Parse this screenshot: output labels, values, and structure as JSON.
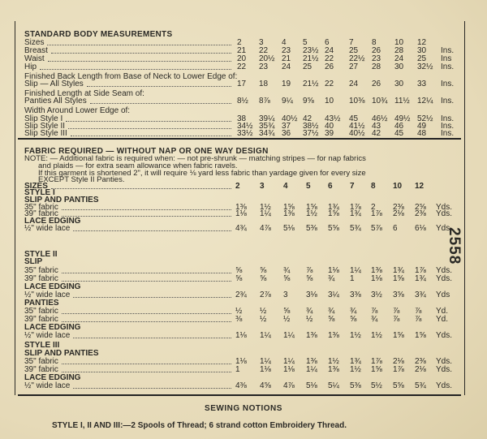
{
  "pattern_number": "2558",
  "body_measurements": {
    "title": "STANDARD BODY MEASUREMENTS",
    "rows": [
      {
        "label": "Sizes",
        "values": [
          "2",
          "3",
          "4",
          "5",
          "6",
          "7",
          "8",
          "10",
          "12"
        ],
        "unit": ""
      },
      {
        "label": "Breast",
        "values": [
          "21",
          "22",
          "23",
          "23½",
          "24",
          "25",
          "26",
          "28",
          "30"
        ],
        "unit": "Ins."
      },
      {
        "label": "Waist",
        "values": [
          "20",
          "20½",
          "21",
          "21½",
          "22",
          "22½",
          "23",
          "24",
          "25"
        ],
        "unit": "Ins"
      },
      {
        "label": "Hip",
        "values": [
          "22",
          "23",
          "24",
          "25",
          "26",
          "27",
          "28",
          "30",
          "32½"
        ],
        "unit": "Ins."
      },
      {
        "label": "Finished Back Length from Base of Neck to Lower Edge of:",
        "plain": true
      },
      {
        "label": "Slip — All Styles",
        "values": [
          "17",
          "18",
          "19",
          "21½",
          "22",
          "24",
          "26",
          "30",
          "33"
        ],
        "unit": "Ins."
      },
      {
        "label": "Finished Length at Side Seam of:",
        "plain": true
      },
      {
        "label": "Panties All Styles",
        "values": [
          "8½",
          "8⅞",
          "9¼",
          "9⅝",
          "10",
          "10⅜",
          "10¾",
          "11½",
          "12¼"
        ],
        "unit": "Ins."
      },
      {
        "label": "Width Around Lower Edge of:",
        "plain": true
      },
      {
        "label": "Slip Style I",
        "values": [
          "38",
          "39¼",
          "40½",
          "42",
          "43½",
          "45",
          "46½",
          "49½",
          "52½"
        ],
        "unit": "Ins."
      },
      {
        "label": "Slip Style II",
        "values": [
          "34½",
          "35¾",
          "37",
          "38½",
          "40",
          "41½",
          "43",
          "46",
          "49"
        ],
        "unit": "Ins."
      },
      {
        "label": "Slip Style III",
        "values": [
          "33½",
          "34¾",
          "36",
          "37½",
          "39",
          "40½",
          "42",
          "45",
          "48"
        ],
        "unit": "Ins."
      }
    ]
  },
  "fabric_required": {
    "title": "FABRIC REQUIRED — WITHOUT NAP OR ONE WAY DESIGN",
    "note_lines": [
      "NOTE: — Additional fabric is required when: — not pre-shrunk — matching stripes — for nap fabrics",
      "and plaids — for extra seam allowance when fabric ravels.",
      "If this garment is shortened 2\", it will require ⅛ yard less fabric than yardage given for every size",
      "EXCEPT Style II Panties."
    ],
    "rows": [
      {
        "label": "SIZES",
        "values": [
          "2",
          "3",
          "4",
          "5",
          "6",
          "7",
          "8",
          "10",
          "12"
        ],
        "unit": "",
        "bold": true
      },
      {
        "label": "STYLE I",
        "heading": true
      },
      {
        "label": "SLIP AND PANTIES",
        "heading": true
      },
      {
        "label": "35\" fabric",
        "values": [
          "1⅜",
          "1½",
          "1⅝",
          "1⅝",
          "1¾",
          "1⅞",
          "2",
          "2⅜",
          "2⅝"
        ],
        "unit": "Yds."
      },
      {
        "label": "39\" fabric",
        "values": [
          "1⅛",
          "1¼",
          "1⅜",
          "1½",
          "1⅝",
          "1¾",
          "1⅞",
          "2⅛",
          "2⅜"
        ],
        "unit": "Yds."
      },
      {
        "label": "LACE EDGING",
        "heading": true
      },
      {
        "label": "½\" wide lace",
        "values": [
          "4¾",
          "4⅞",
          "5⅛",
          "5⅜",
          "5⅝",
          "5¾",
          "5⅞",
          "6",
          "6⅛"
        ],
        "unit": "Yds."
      },
      {
        "label": "STYLE II",
        "heading": true
      },
      {
        "label": "SLIP",
        "heading": true
      },
      {
        "label": "35\" fabric",
        "values": [
          "⅝",
          "⅝",
          "¾",
          "⅞",
          "1⅛",
          "1¼",
          "1⅜",
          "1¾",
          "1⅞"
        ],
        "unit": "Yds."
      },
      {
        "label": "39\" fabric",
        "values": [
          "⅝",
          "⅝",
          "⅝",
          "⅝",
          "¾",
          "1",
          "1⅛",
          "1⅝",
          "1¾"
        ],
        "unit": "Yds."
      },
      {
        "label": "LACE EDGING",
        "heading": true
      },
      {
        "label": "½\" wide lace",
        "values": [
          "2¾",
          "2⅞",
          "3",
          "3⅛",
          "3¼",
          "3⅜",
          "3½",
          "3⅝",
          "3¾"
        ],
        "unit": "Yds"
      },
      {
        "label": "PANTIES",
        "heading": true
      },
      {
        "label": "35\" fabric",
        "values": [
          "½",
          "½",
          "⅝",
          "¾",
          "¾",
          "¾",
          "⅞",
          "⅞",
          "⅞"
        ],
        "unit": "Yd."
      },
      {
        "label": "39\" fabric",
        "values": [
          "⅜",
          "½",
          "½",
          "½",
          "⅝",
          "⅝",
          "¾",
          "⅞",
          "⅞"
        ],
        "unit": "Yd."
      },
      {
        "label": "LACE EDGING",
        "heading": true
      },
      {
        "label": "½\" wide lace",
        "values": [
          "1⅛",
          "1¼",
          "1¼",
          "1⅜",
          "1⅜",
          "1½",
          "1½",
          "1⅝",
          "1⅝"
        ],
        "unit": "Yds."
      },
      {
        "label": "STYLE III",
        "heading": true
      },
      {
        "label": "SLIP AND PANTIES",
        "heading": true
      },
      {
        "label": "35\" fabric",
        "values": [
          "1⅛",
          "1¼",
          "1¼",
          "1⅜",
          "1½",
          "1¾",
          "1⅞",
          "2⅛",
          "2⅜"
        ],
        "unit": "Yds."
      },
      {
        "label": "39\" fabric",
        "values": [
          "1",
          "1⅛",
          "1⅛",
          "1¼",
          "1⅜",
          "1½",
          "1⅝",
          "1⅞",
          "2⅛"
        ],
        "unit": "Yds."
      },
      {
        "label": "LACE EDGING",
        "heading": true
      },
      {
        "label": "½\" wide lace",
        "values": [
          "4⅜",
          "4⅝",
          "4⅞",
          "5⅛",
          "5¼",
          "5⅜",
          "5½",
          "5⅝",
          "5¾"
        ],
        "unit": "Yds."
      }
    ]
  },
  "sewing_notions": {
    "title": "SEWING NOTIONS",
    "text": "STYLE I, II AND III:—2 Spools of Thread; 6 strand cotton Embroidery Thread."
  }
}
